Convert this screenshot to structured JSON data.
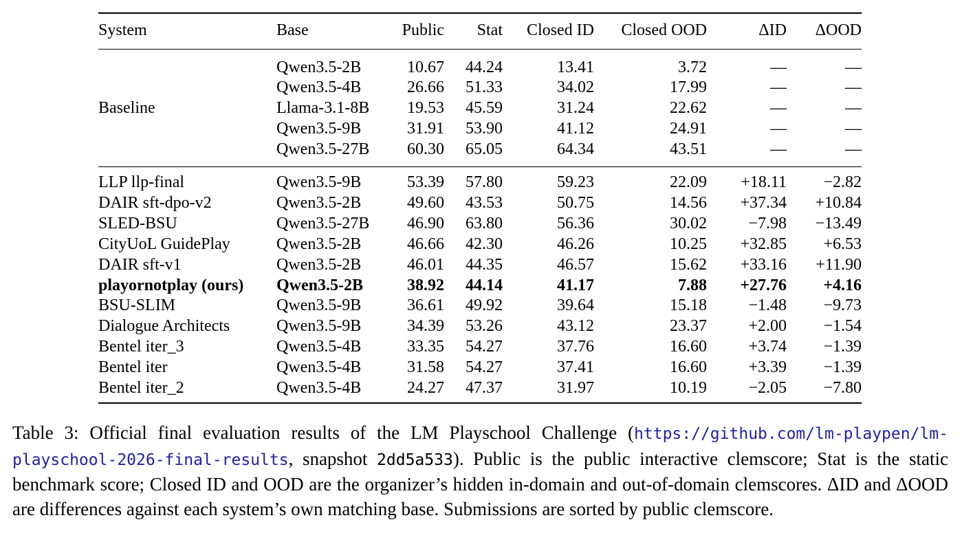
{
  "table": {
    "headers": [
      "System",
      "Base",
      "Public",
      "Stat",
      "Closed ID",
      "Closed OOD",
      "ΔID",
      "ΔOOD"
    ],
    "baseline_label": "Baseline",
    "baselines": [
      {
        "base": "Qwen3.5-2B",
        "public": "10.67",
        "stat": "44.24",
        "closed_id": "13.41",
        "closed_ood": "3.72",
        "delta_id": "—",
        "delta_ood": "—"
      },
      {
        "base": "Qwen3.5-4B",
        "public": "26.66",
        "stat": "51.33",
        "closed_id": "34.02",
        "closed_ood": "17.99",
        "delta_id": "—",
        "delta_ood": "—"
      },
      {
        "base": "Llama-3.1-8B",
        "public": "19.53",
        "stat": "45.59",
        "closed_id": "31.24",
        "closed_ood": "22.62",
        "delta_id": "—",
        "delta_ood": "—"
      },
      {
        "base": "Qwen3.5-9B",
        "public": "31.91",
        "stat": "53.90",
        "closed_id": "41.12",
        "closed_ood": "24.91",
        "delta_id": "—",
        "delta_ood": "—"
      },
      {
        "base": "Qwen3.5-27B",
        "public": "60.30",
        "stat": "65.05",
        "closed_id": "64.34",
        "closed_ood": "43.51",
        "delta_id": "—",
        "delta_ood": "—"
      }
    ],
    "submissions": [
      {
        "system": "LLP llp-final",
        "base": "Qwen3.5-9B",
        "public": "53.39",
        "stat": "57.80",
        "closed_id": "59.23",
        "closed_ood": "22.09",
        "delta_id": "+18.11",
        "delta_ood": "−2.82"
      },
      {
        "system": "DAIR sft-dpo-v2",
        "base": "Qwen3.5-2B",
        "public": "49.60",
        "stat": "43.53",
        "closed_id": "50.75",
        "closed_ood": "14.56",
        "delta_id": "+37.34",
        "delta_ood": "+10.84"
      },
      {
        "system": "SLED-BSU",
        "base": "Qwen3.5-27B",
        "public": "46.90",
        "stat": "63.80",
        "closed_id": "56.36",
        "closed_ood": "30.02",
        "delta_id": "−7.98",
        "delta_ood": "−13.49"
      },
      {
        "system": "CityUoL GuidePlay",
        "base": "Qwen3.5-2B",
        "public": "46.66",
        "stat": "42.30",
        "closed_id": "46.26",
        "closed_ood": "10.25",
        "delta_id": "+32.85",
        "delta_ood": "+6.53"
      },
      {
        "system": "DAIR sft-v1",
        "base": "Qwen3.5-2B",
        "public": "46.01",
        "stat": "44.35",
        "closed_id": "46.57",
        "closed_ood": "15.62",
        "delta_id": "+33.16",
        "delta_ood": "+11.90"
      },
      {
        "system": "playornotplay (ours)",
        "base": "Qwen3.5-2B",
        "public": "38.92",
        "stat": "44.14",
        "closed_id": "41.17",
        "closed_ood": "7.88",
        "delta_id": "+27.76",
        "delta_ood": "+4.16",
        "bold": true
      },
      {
        "system": "BSU-SLIM",
        "base": "Qwen3.5-9B",
        "public": "36.61",
        "stat": "49.92",
        "closed_id": "39.64",
        "closed_ood": "15.18",
        "delta_id": "−1.48",
        "delta_ood": "−9.73"
      },
      {
        "system": "Dialogue Architects",
        "base": "Qwen3.5-9B",
        "public": "34.39",
        "stat": "53.26",
        "closed_id": "43.12",
        "closed_ood": "23.37",
        "delta_id": "+2.00",
        "delta_ood": "−1.54"
      },
      {
        "system": "Bentel iter_3",
        "base": "Qwen3.5-4B",
        "public": "33.35",
        "stat": "54.27",
        "closed_id": "37.76",
        "closed_ood": "16.60",
        "delta_id": "+3.74",
        "delta_ood": "−1.39"
      },
      {
        "system": "Bentel iter",
        "base": "Qwen3.5-4B",
        "public": "31.58",
        "stat": "54.27",
        "closed_id": "37.41",
        "closed_ood": "16.60",
        "delta_id": "+3.39",
        "delta_ood": "−1.39"
      },
      {
        "system": "Bentel iter_2",
        "base": "Qwen3.5-4B",
        "public": "24.27",
        "stat": "47.37",
        "closed_id": "31.97",
        "closed_ood": "10.19",
        "delta_id": "−2.05",
        "delta_ood": "−7.80"
      }
    ]
  },
  "caption": {
    "prefix": "Table 3: Official final evaluation results of the LM Playschool Challenge (",
    "url": "https://github.com/lm-playpen/lm-playschool-2026-final-results",
    "mid": ", snapshot ",
    "snapshot": "2dd5a533",
    "suffix": "). Public is the public interactive clemscore; Stat is the static benchmark score; Closed ID and OOD are the organizer’s hidden in-domain and out-of-domain clemscores. ΔID and ΔOOD are differences against each system’s own matching base. Submissions are sorted by public clemscore.",
    "link_color": "#1f1fa8"
  }
}
